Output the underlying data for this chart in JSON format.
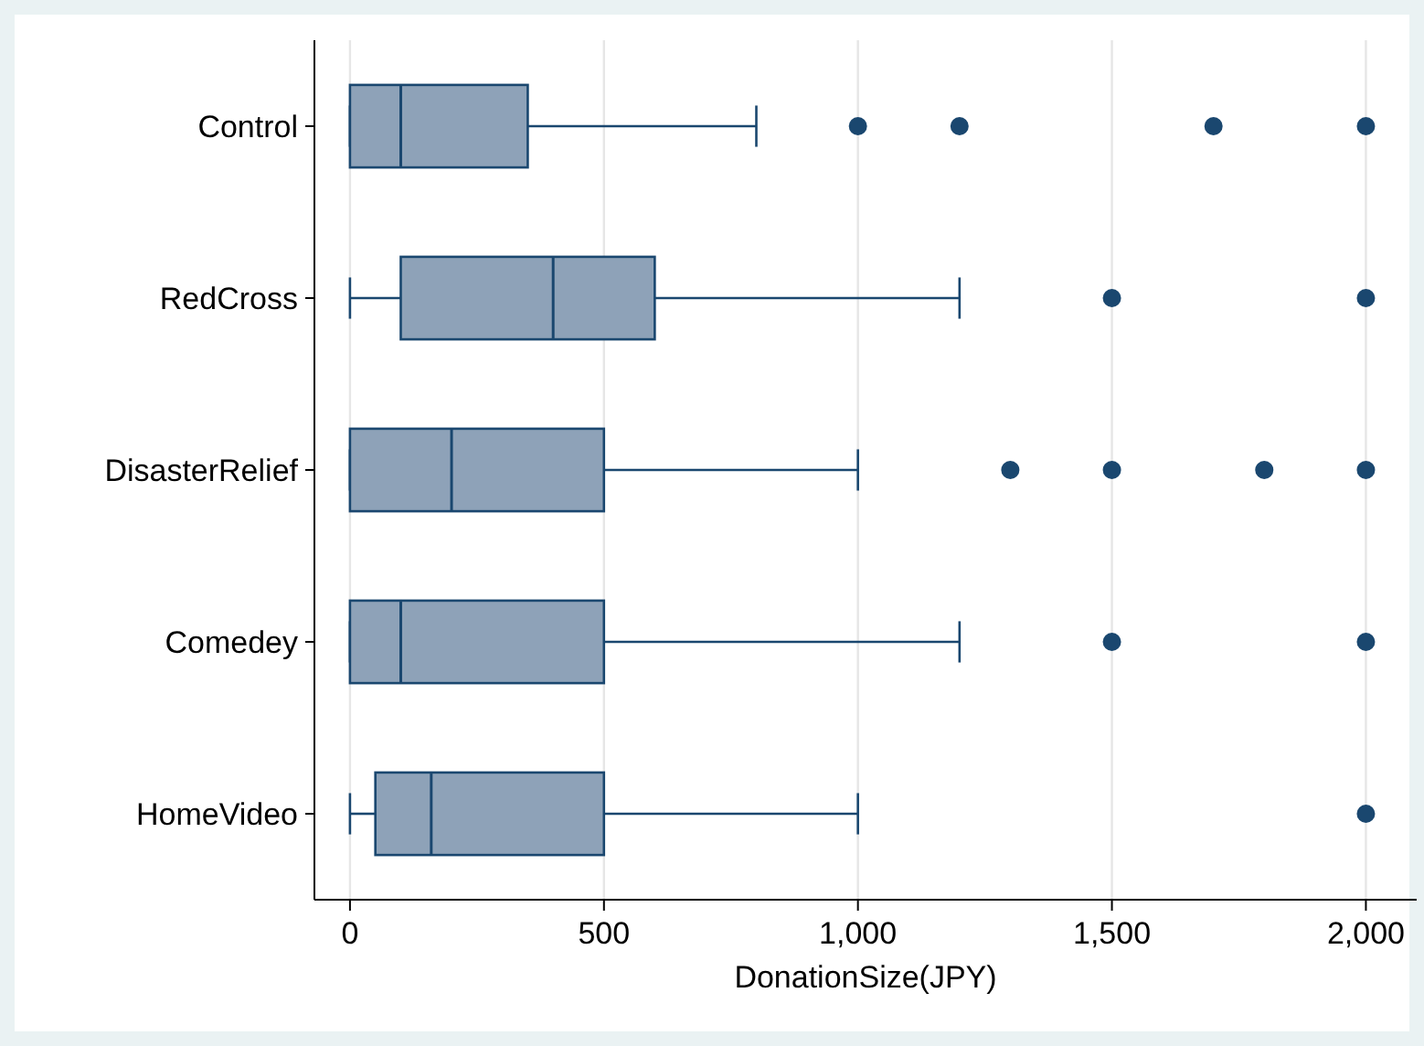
{
  "chart_data": {
    "type": "box",
    "orientation": "horizontal",
    "xlabel": "DonationSize(JPY)",
    "categories": [
      "Control",
      "RedCross",
      "DisasterRelief",
      "Comedey",
      "HomeVideo"
    ],
    "series": [
      {
        "color": "#8ea2b8",
        "boxes": [
          {
            "low": 0,
            "q1": 0,
            "median": 100,
            "q3": 350,
            "high": 800,
            "outliers": [
              1000,
              1200,
              1700,
              2000
            ]
          },
          {
            "low": 0,
            "q1": 100,
            "median": 400,
            "q3": 600,
            "high": 1200,
            "outliers": [
              1500,
              2000
            ]
          },
          {
            "low": 0,
            "q1": 0,
            "median": 200,
            "q3": 500,
            "high": 1000,
            "outliers": [
              1300,
              1500,
              1800,
              2000
            ]
          },
          {
            "low": 0,
            "q1": 0,
            "median": 100,
            "q3": 500,
            "high": 1200,
            "outliers": [
              1500,
              2000
            ]
          },
          {
            "low": 0,
            "q1": 50,
            "median": 160,
            "q3": 500,
            "high": 1000,
            "outliers": [
              2000
            ]
          }
        ]
      }
    ],
    "xlim": [
      -70,
      2100
    ],
    "xticks": [
      0,
      500,
      {
        "value": 1000,
        "label": "1,000"
      },
      {
        "value": 1500,
        "label": "1,500"
      },
      {
        "value": 2000,
        "label": "2,000"
      }
    ],
    "grid": "x"
  }
}
